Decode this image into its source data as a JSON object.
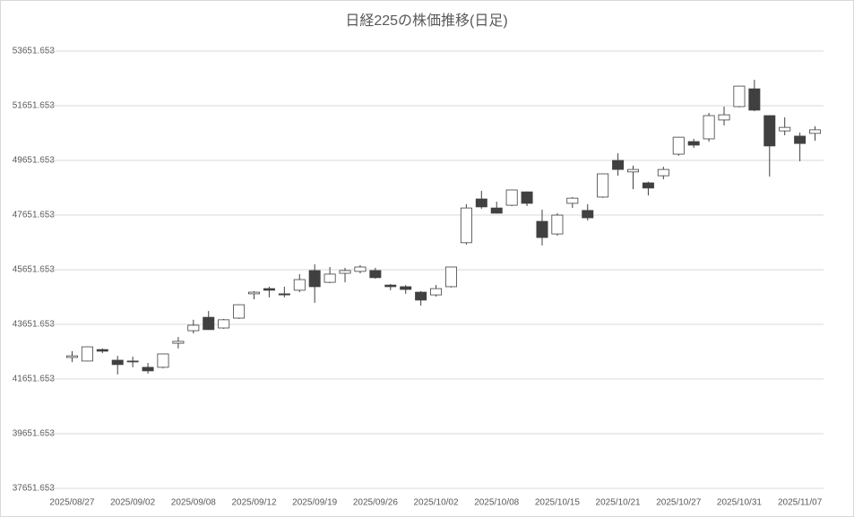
{
  "chart_data": {
    "type": "candlestick",
    "title": "日経225の株価推移(日足)",
    "categories": [
      "2025/08/27",
      null,
      null,
      null,
      "2025/09/02",
      null,
      null,
      null,
      "2025/09/08",
      null,
      null,
      null,
      "2025/09/12",
      null,
      null,
      null,
      "2025/09/19",
      null,
      null,
      null,
      "2025/09/26",
      null,
      null,
      null,
      "2025/10/02",
      null,
      null,
      null,
      "2025/10/08",
      null,
      null,
      null,
      "2025/10/15",
      null,
      null,
      null,
      "2025/10/21",
      null,
      null,
      null,
      "2025/10/27",
      null,
      null,
      null,
      "2025/10/31",
      null,
      null,
      null,
      "2025/11/07",
      null
    ],
    "open": [
      42440,
      42310,
      42730,
      42340,
      42310,
      42080,
      42080,
      42960,
      43420,
      43910,
      43520,
      43880,
      44770,
      44960,
      44770,
      44900,
      45620,
      45190,
      45520,
      45590,
      45620,
      45090,
      45030,
      44830,
      44730,
      45030,
      46640,
      48240,
      47910,
      48010,
      48500,
      47420,
      46960,
      48080,
      47820,
      48310,
      49650,
      49230,
      48830,
      49090,
      49880,
      50340,
      50440,
      51130,
      51620,
      52270,
      51290,
      50730,
      50540,
      50640
    ],
    "high": [
      42670,
      42840,
      42770,
      42500,
      42470,
      42240,
      42580,
      43190,
      43820,
      44140,
      43850,
      44380,
      44870,
      45030,
      45030,
      45490,
      45850,
      45750,
      45720,
      45820,
      45720,
      45130,
      45090,
      44870,
      45090,
      45760,
      48050,
      48540,
      48140,
      48580,
      48510,
      47850,
      47720,
      48310,
      48050,
      49170,
      49910,
      49460,
      48870,
      49420,
      50510,
      50440,
      51390,
      51620,
      52380,
      52600,
      51300,
      51230,
      50670,
      50900
    ],
    "low": [
      42270,
      42300,
      42600,
      41820,
      42080,
      41850,
      42040,
      42770,
      43320,
      43450,
      43490,
      43850,
      44570,
      44640,
      44640,
      44830,
      44440,
      45160,
      45190,
      45520,
      45320,
      44900,
      44770,
      44340,
      44670,
      45000,
      46570,
      47880,
      47710,
      47980,
      47980,
      46540,
      46900,
      47910,
      47450,
      48280,
      49090,
      48600,
      48370,
      48960,
      49820,
      50110,
      50340,
      50930,
      51590,
      51450,
      49060,
      50570,
      49620,
      50370
    ],
    "close": [
      42500,
      42830,
      42670,
      42180,
      42280,
      41950,
      42570,
      43030,
      43620,
      43460,
      43820,
      44370,
      44830,
      44900,
      44730,
      45290,
      45030,
      45490,
      45620,
      45750,
      45360,
      45030,
      44930,
      44540,
      44960,
      45750,
      47910,
      47950,
      47720,
      48570,
      48080,
      46830,
      47650,
      48270,
      47550,
      49160,
      49320,
      49320,
      48640,
      49320,
      50500,
      50210,
      51290,
      51320,
      52370,
      51490,
      50180,
      50860,
      50270,
      50770
    ],
    "up_color": "#ffffff",
    "down_color": "#404040",
    "edge_color": "#404040",
    "ylim": [
      37651.653,
      53651.653
    ],
    "yticks": [
      37651.653,
      39651.653,
      41651.653,
      43651.653,
      45651.653,
      47651.653,
      49651.653,
      51651.653,
      53651.653
    ],
    "grid": true
  }
}
